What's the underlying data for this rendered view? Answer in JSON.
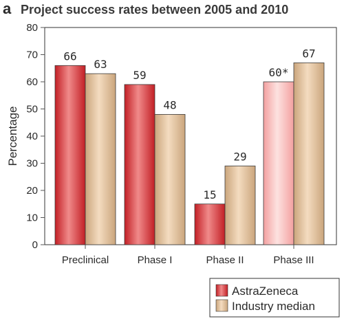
{
  "panel_letter": "a",
  "colors": {
    "astrazeneca_dark": "#c21f25",
    "astrazeneca_light": "#f08a8a",
    "astrazeneca_pale_dark": "#f3a0a0",
    "astrazeneca_pale_light": "#fde2e0",
    "industry_dark": "#caa57c",
    "industry_light": "#f4dcc0",
    "axis": "#555555",
    "border": "#333333"
  },
  "chart_data": {
    "type": "bar",
    "title": "Project success rates between 2005 and 2010",
    "ylabel": "Percentage",
    "xlabel": "",
    "ylim": [
      0,
      80
    ],
    "yticks": [
      "0",
      "10",
      "20",
      "30",
      "40",
      "50",
      "60",
      "70",
      "80"
    ],
    "categories": [
      "Preclinical",
      "Phase I",
      "Phase II",
      "Phase III"
    ],
    "series": [
      {
        "name": "AstraZeneca",
        "values": [
          66,
          59,
          15,
          60
        ],
        "labels": [
          "66",
          "59",
          "15",
          "60*"
        ],
        "highlight_pale": [
          false,
          false,
          false,
          true
        ]
      },
      {
        "name": "Industry median",
        "values": [
          63,
          48,
          29,
          67
        ],
        "labels": [
          "63",
          "48",
          "29",
          "67"
        ]
      }
    ],
    "legend_position": "bottom-right",
    "grid": false
  }
}
